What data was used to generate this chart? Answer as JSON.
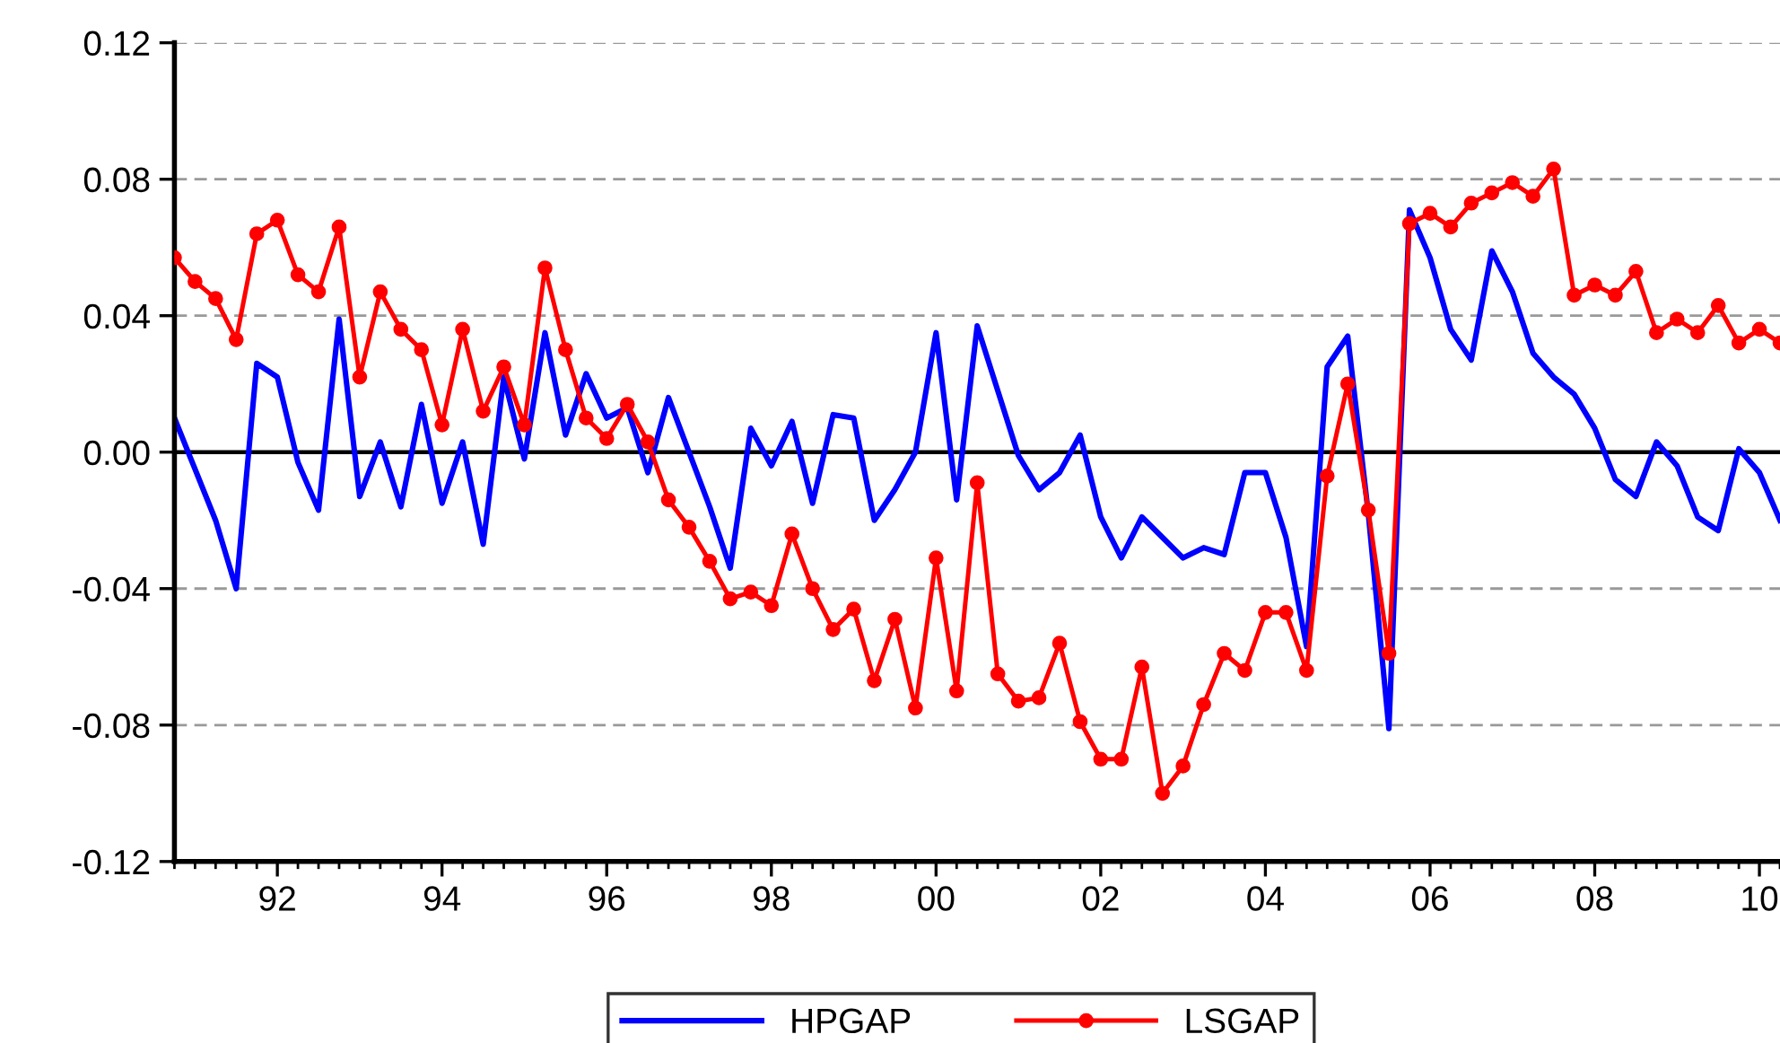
{
  "chart_data": {
    "type": "line",
    "x": [
      1990.75,
      1991.0,
      1991.25,
      1991.5,
      1991.75,
      1992.0,
      1992.25,
      1992.5,
      1992.75,
      1993.0,
      1993.25,
      1993.5,
      1993.75,
      1994.0,
      1994.25,
      1994.5,
      1994.75,
      1995.0,
      1995.25,
      1995.5,
      1995.75,
      1996.0,
      1996.25,
      1996.5,
      1996.75,
      1997.0,
      1997.25,
      1997.5,
      1997.75,
      1998.0,
      1998.25,
      1998.5,
      1998.75,
      1999.0,
      1999.25,
      1999.5,
      1999.75,
      2000.0,
      2000.25,
      2000.5,
      2000.75,
      2001.0,
      2001.25,
      2001.5,
      2001.75,
      2002.0,
      2002.25,
      2002.5,
      2002.75,
      2003.0,
      2003.25,
      2003.5,
      2003.75,
      2004.0,
      2004.25,
      2004.5,
      2004.75,
      2005.0,
      2005.25,
      2005.5,
      2005.75,
      2006.0,
      2006.25,
      2006.5,
      2006.75,
      2007.0,
      2007.25,
      2007.5,
      2007.75,
      2008.0,
      2008.25,
      2008.5,
      2008.75,
      2009.0,
      2009.25,
      2009.5,
      2009.75,
      2010.0,
      2010.25
    ],
    "series": [
      {
        "name": "HPGAP",
        "color": "#0000ff",
        "marker": "none",
        "values": [
          0.01,
          -0.005,
          -0.02,
          -0.04,
          0.026,
          0.022,
          -0.003,
          -0.017,
          0.039,
          -0.013,
          0.003,
          -0.016,
          0.014,
          -0.015,
          0.003,
          -0.027,
          0.022,
          -0.002,
          0.035,
          0.005,
          0.023,
          0.01,
          0.013,
          -0.006,
          0.016,
          0.0,
          -0.016,
          -0.034,
          0.007,
          -0.004,
          0.009,
          -0.015,
          0.011,
          0.01,
          -0.02,
          -0.011,
          0.0,
          0.035,
          -0.014,
          0.037,
          0.018,
          -0.001,
          -0.011,
          -0.006,
          0.005,
          -0.019,
          -0.031,
          -0.019,
          -0.025,
          -0.031,
          -0.028,
          -0.03,
          -0.006,
          -0.006,
          -0.025,
          -0.057,
          0.025,
          0.034,
          -0.018,
          -0.081,
          0.071,
          0.057,
          0.036,
          0.027,
          0.059,
          0.047,
          0.029,
          0.022,
          0.017,
          0.007,
          -0.008,
          -0.013,
          0.003,
          -0.004,
          -0.019,
          -0.023,
          0.001,
          -0.006,
          -0.02
        ]
      },
      {
        "name": "LSGAP",
        "color": "#ff0000",
        "marker": "circle",
        "values": [
          0.057,
          0.05,
          0.045,
          0.033,
          0.064,
          0.068,
          0.052,
          0.047,
          0.066,
          0.022,
          0.047,
          0.036,
          0.03,
          0.008,
          0.036,
          0.012,
          0.025,
          0.008,
          0.054,
          0.03,
          0.01,
          0.004,
          0.014,
          0.003,
          -0.014,
          -0.022,
          -0.032,
          -0.043,
          -0.041,
          -0.045,
          -0.024,
          -0.04,
          -0.052,
          -0.046,
          -0.067,
          -0.049,
          -0.075,
          -0.031,
          -0.07,
          -0.009,
          -0.065,
          -0.073,
          -0.072,
          -0.056,
          -0.079,
          -0.09,
          -0.09,
          -0.063,
          -0.1,
          -0.092,
          -0.074,
          -0.059,
          -0.064,
          -0.047,
          -0.047,
          -0.064,
          -0.007,
          0.02,
          -0.017,
          -0.059,
          0.067,
          0.07,
          0.066,
          0.073,
          0.076,
          0.079,
          0.075,
          0.083,
          0.046,
          0.049,
          0.046,
          0.053,
          0.035,
          0.039,
          0.035,
          0.043,
          0.032,
          0.036,
          0.032
        ]
      }
    ],
    "xlim": [
      1990.75,
      2010.25
    ],
    "xticks": [
      {
        "value": 1992,
        "label": "92"
      },
      {
        "value": 1994,
        "label": "94"
      },
      {
        "value": 1996,
        "label": "96"
      },
      {
        "value": 1998,
        "label": "98"
      },
      {
        "value": 2000,
        "label": "00"
      },
      {
        "value": 2002,
        "label": "02"
      },
      {
        "value": 2004,
        "label": "04"
      },
      {
        "value": 2006,
        "label": "06"
      },
      {
        "value": 2008,
        "label": "08"
      },
      {
        "value": 2010,
        "label": "10"
      }
    ],
    "ylim": [
      -0.12,
      0.12
    ],
    "yticks": [
      {
        "value": -0.12,
        "label": "-0.12"
      },
      {
        "value": -0.08,
        "label": "-0.08"
      },
      {
        "value": -0.04,
        "label": "-0.04"
      },
      {
        "value": 0,
        "label": "0.00"
      },
      {
        "value": 0.04,
        "label": "0.04"
      },
      {
        "value": 0.08,
        "label": "0.08"
      },
      {
        "value": 0.12,
        "label": "0.12"
      }
    ],
    "grid": "y",
    "ref_lines": [
      {
        "axis": "y",
        "value": 0,
        "color": "#000000",
        "line_style": "solid"
      }
    ],
    "legend": "bottom",
    "line_style": "solid"
  }
}
